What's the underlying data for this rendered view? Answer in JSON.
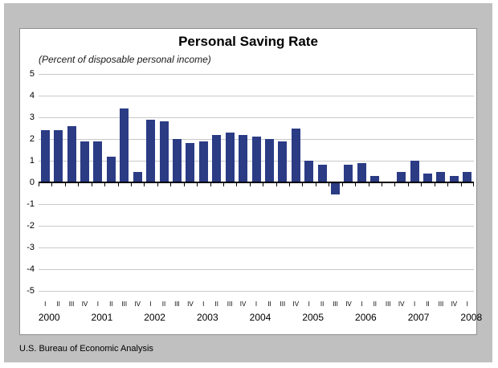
{
  "page": {
    "footer_source": "U.S. Bureau of Economic Analysis"
  },
  "chart_data": {
    "type": "bar",
    "title": "Personal Saving Rate",
    "subtitle": "(Percent of disposable personal income)",
    "ylabel": "",
    "xlabel": "",
    "ylim": [
      -5,
      5
    ],
    "ytick_step": 1,
    "yticks": [
      5,
      4,
      3,
      2,
      1,
      0,
      -1,
      -2,
      -3,
      -4,
      -5
    ],
    "grid": true,
    "legend": false,
    "source": "U.S. Bureau of Economic Analysis",
    "colors": {
      "bar": "#2B3C85",
      "gridline": "#C9C9C9",
      "axis": "#000000",
      "plot_background": "#FFFFFF",
      "frame_background": "#C0C0C0"
    },
    "points": [
      {
        "year": "2000",
        "quarter": "I",
        "value": 2.4
      },
      {
        "year": "2000",
        "quarter": "II",
        "value": 2.4
      },
      {
        "year": "2000",
        "quarter": "III",
        "value": 2.6
      },
      {
        "year": "2000",
        "quarter": "IV",
        "value": 1.9
      },
      {
        "year": "2001",
        "quarter": "I",
        "value": 1.9
      },
      {
        "year": "2001",
        "quarter": "II",
        "value": 1.2
      },
      {
        "year": "2001",
        "quarter": "III",
        "value": 3.4
      },
      {
        "year": "2001",
        "quarter": "IV",
        "value": 0.5
      },
      {
        "year": "2002",
        "quarter": "I",
        "value": 2.9
      },
      {
        "year": "2002",
        "quarter": "II",
        "value": 2.8
      },
      {
        "year": "2002",
        "quarter": "III",
        "value": 2.0
      },
      {
        "year": "2002",
        "quarter": "IV",
        "value": 1.8
      },
      {
        "year": "2003",
        "quarter": "I",
        "value": 1.9
      },
      {
        "year": "2003",
        "quarter": "II",
        "value": 2.2
      },
      {
        "year": "2003",
        "quarter": "III",
        "value": 2.3
      },
      {
        "year": "2003",
        "quarter": "IV",
        "value": 2.2
      },
      {
        "year": "2004",
        "quarter": "I",
        "value": 2.1
      },
      {
        "year": "2004",
        "quarter": "II",
        "value": 2.0
      },
      {
        "year": "2004",
        "quarter": "III",
        "value": 1.9
      },
      {
        "year": "2004",
        "quarter": "IV",
        "value": 2.5
      },
      {
        "year": "2005",
        "quarter": "I",
        "value": 1.0
      },
      {
        "year": "2005",
        "quarter": "II",
        "value": 0.8
      },
      {
        "year": "2005",
        "quarter": "III",
        "value": -0.5
      },
      {
        "year": "2005",
        "quarter": "IV",
        "value": 0.8
      },
      {
        "year": "2006",
        "quarter": "I",
        "value": 0.9
      },
      {
        "year": "2006",
        "quarter": "II",
        "value": 0.3
      },
      {
        "year": "2006",
        "quarter": "III",
        "value": 0.0
      },
      {
        "year": "2006",
        "quarter": "IV",
        "value": 0.5
      },
      {
        "year": "2007",
        "quarter": "I",
        "value": 1.0
      },
      {
        "year": "2007",
        "quarter": "II",
        "value": 0.4
      },
      {
        "year": "2007",
        "quarter": "III",
        "value": 0.5
      },
      {
        "year": "2007",
        "quarter": "IV",
        "value": 0.3
      },
      {
        "year": "2008",
        "quarter": "I",
        "value": 0.5
      }
    ]
  }
}
